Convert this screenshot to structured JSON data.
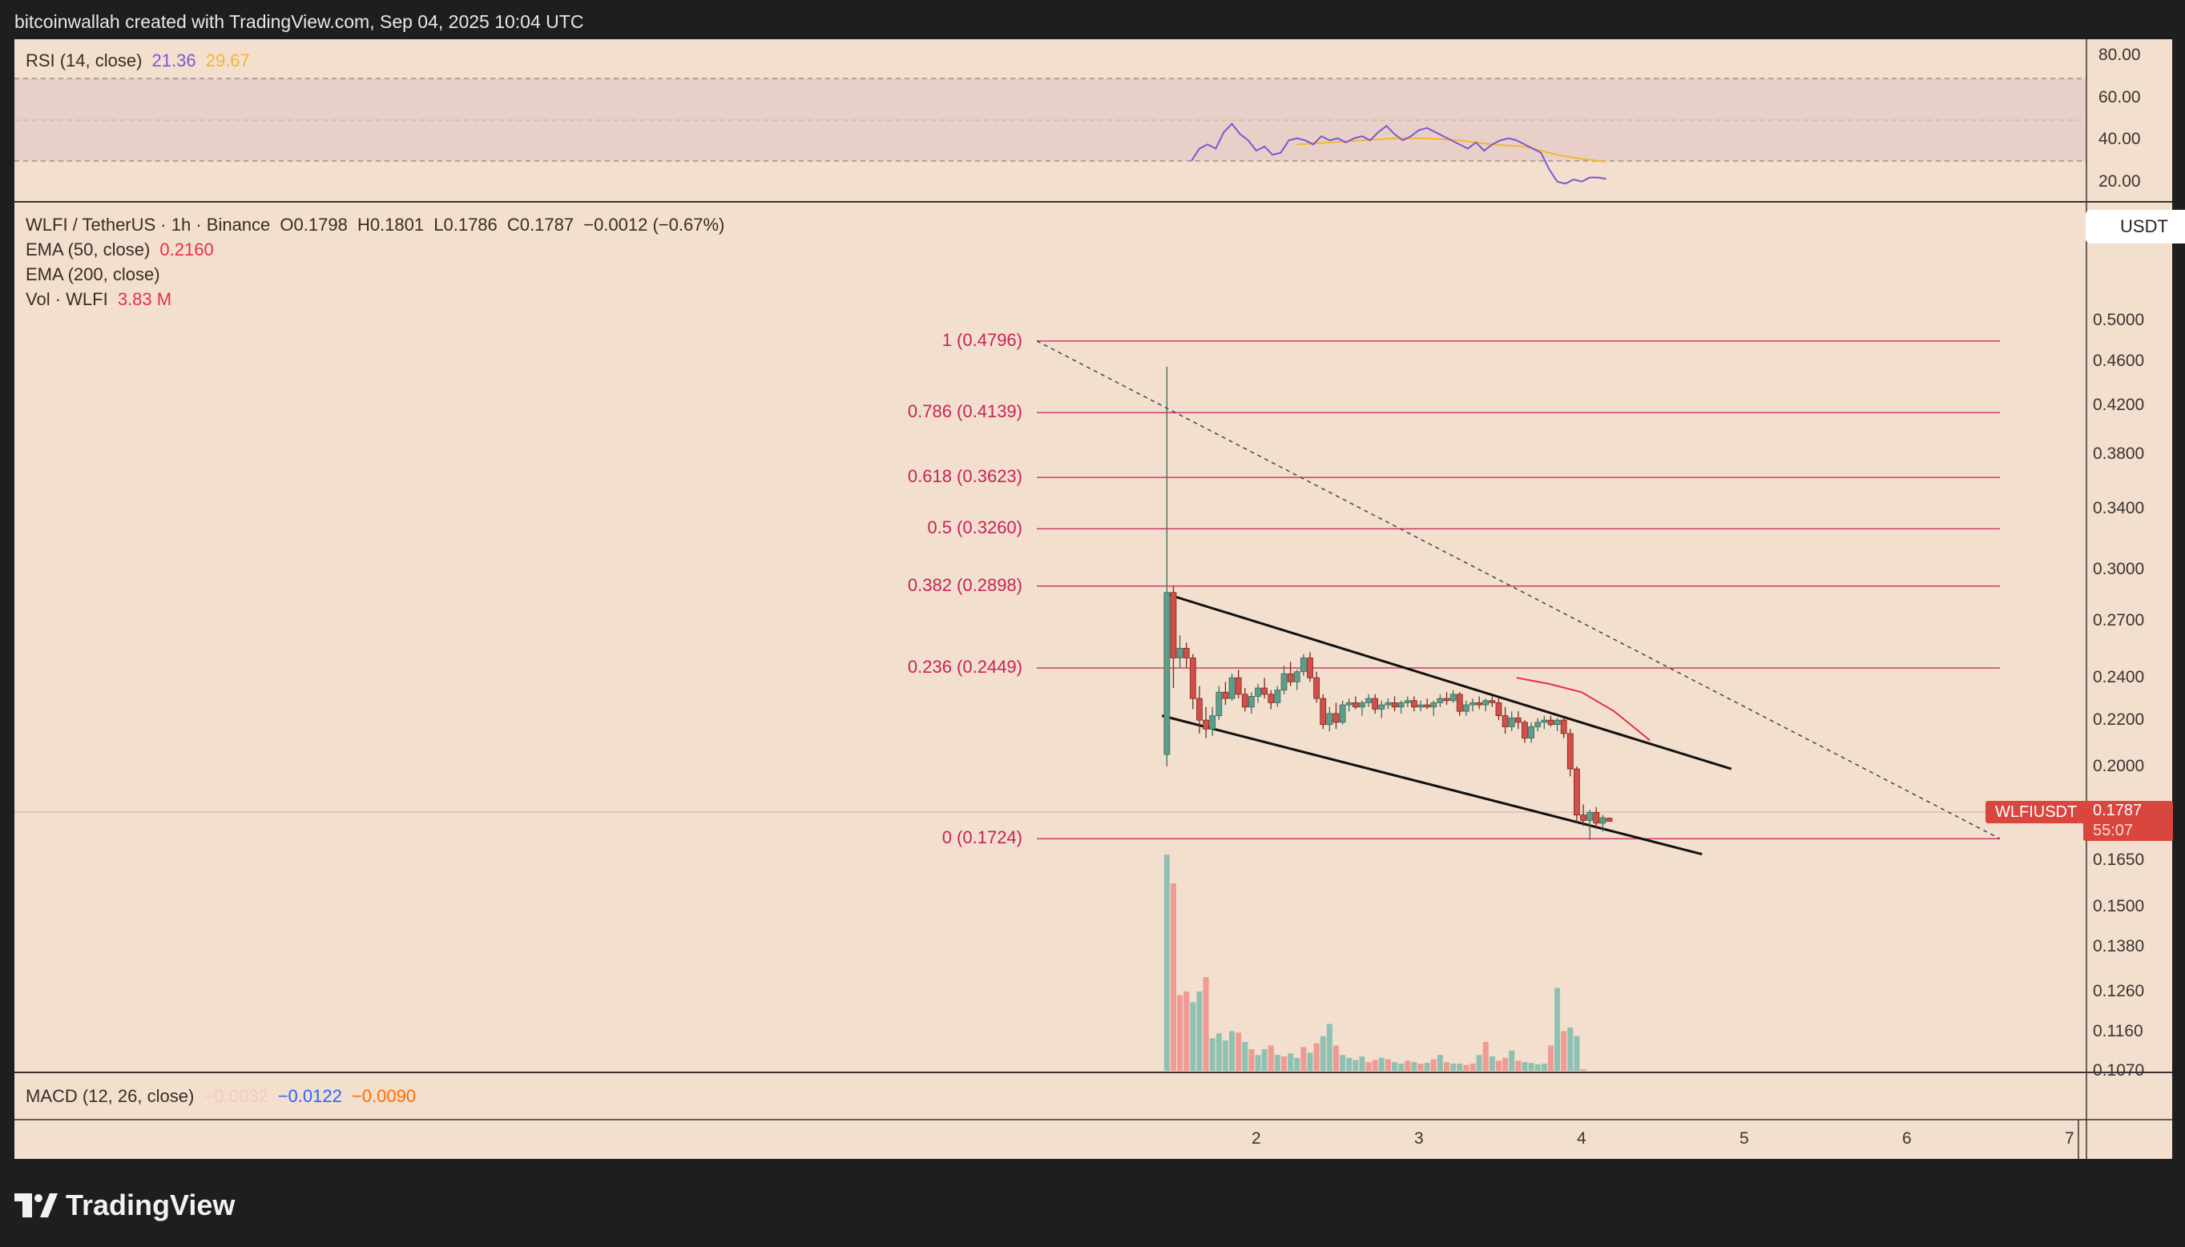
{
  "header": {
    "text": "bitcoinwallah created with TradingView.com, Sep 04, 2025 10:04 UTC"
  },
  "logo": {
    "text": "TradingView"
  },
  "colors": {
    "background": "#f2dfcd",
    "up": "#5c9e8a",
    "down": "#d24e48",
    "vol_up": "#8fc1b2",
    "vol_down": "#ef9a93",
    "fib": "#d3396c",
    "rsi": "#7b57d6",
    "rsi_ma": "#f2b731",
    "ema50": "#e5304a",
    "macd_line": "#2962ff",
    "macd_signal": "#ff6d00"
  },
  "rsi_panel": {
    "name": "RSI",
    "params": "(14, close)",
    "value": "21.36",
    "ma_value": "29.67",
    "axis_ticks": [
      "80.00",
      "60.00",
      "40.00",
      "20.00"
    ]
  },
  "main_panel": {
    "symbol": "WLFI / TetherUS · 1h · Binance",
    "ohlc": {
      "o": "O0.1798",
      "h": "H0.1801",
      "l": "L0.1786",
      "c": "C0.1787",
      "chg": "−0.0012 (−0.67%)"
    },
    "ema50": {
      "label": "EMA (50, close)",
      "value": "0.2160"
    },
    "ema200": {
      "label": "EMA (200, close)"
    },
    "volume": {
      "label": "Vol · WLFI",
      "value": "3.83 M"
    },
    "currency": "USDT",
    "ticker": "WLFIUSDT",
    "last_price": "0.1787",
    "countdown": "55:07",
    "price_ticks": [
      "0.5000",
      "0.4600",
      "0.4200",
      "0.3800",
      "0.3400",
      "0.3000",
      "0.2700",
      "0.2400",
      "0.2200",
      "0.2000",
      "0.1650",
      "0.1500",
      "0.1380",
      "0.1260",
      "0.1160",
      "0.1070"
    ]
  },
  "macd_panel": {
    "label": "MACD (12, 26, close)",
    "v1": "−0.0032",
    "v2": "−0.0122",
    "v3": "−0.0090"
  },
  "time_axis": [
    "2",
    "3",
    "4",
    "5",
    "6",
    "7"
  ],
  "chart_data": {
    "type": "candlestick",
    "symbol": "WLFIUSDT",
    "interval": "1h",
    "ohlc_last": {
      "open": 0.1798,
      "high": 0.1801,
      "low": 0.1786,
      "close": 0.1787
    },
    "fib_levels": [
      {
        "label": "1 (0.4796)",
        "ratio": 1,
        "price": 0.4796
      },
      {
        "label": "0.786 (0.4139)",
        "ratio": 0.786,
        "price": 0.4139
      },
      {
        "label": "0.618 (0.3623)",
        "ratio": 0.618,
        "price": 0.3623
      },
      {
        "label": "0.5 (0.3260)",
        "ratio": 0.5,
        "price": 0.326
      },
      {
        "label": "0.382 (0.2898)",
        "ratio": 0.382,
        "price": 0.2898
      },
      {
        "label": "0.236 (0.2449)",
        "ratio": 0.236,
        "price": 0.2449
      },
      {
        "label": "0 (0.1724)",
        "ratio": 0,
        "price": 0.1724
      }
    ],
    "channel": {
      "upper": [
        [
          1.45,
          0.285
        ],
        [
          4.92,
          0.199
        ]
      ],
      "lower": [
        [
          1.42,
          0.222
        ],
        [
          4.74,
          0.167
        ]
      ]
    },
    "ema50_line": [
      [
        3.6,
        0.24
      ],
      [
        3.8,
        0.237
      ],
      [
        4.0,
        0.233
      ],
      [
        4.2,
        0.224
      ],
      [
        4.42,
        0.211
      ]
    ],
    "candles": [
      [
        1.45,
        0.205,
        0.455,
        0.2,
        0.286
      ],
      [
        1.49,
        0.286,
        0.29,
        0.235,
        0.25
      ],
      [
        1.53,
        0.25,
        0.262,
        0.245,
        0.255
      ],
      [
        1.57,
        0.255,
        0.258,
        0.245,
        0.25
      ],
      [
        1.61,
        0.25,
        0.252,
        0.225,
        0.23
      ],
      [
        1.65,
        0.23,
        0.236,
        0.214,
        0.22
      ],
      [
        1.69,
        0.22,
        0.226,
        0.212,
        0.216
      ],
      [
        1.73,
        0.216,
        0.226,
        0.213,
        0.222
      ],
      [
        1.77,
        0.222,
        0.236,
        0.22,
        0.233
      ],
      [
        1.81,
        0.233,
        0.238,
        0.227,
        0.23
      ],
      [
        1.85,
        0.23,
        0.242,
        0.229,
        0.24
      ],
      [
        1.89,
        0.24,
        0.244,
        0.23,
        0.232
      ],
      [
        1.93,
        0.232,
        0.235,
        0.224,
        0.226
      ],
      [
        1.97,
        0.226,
        0.233,
        0.223,
        0.231
      ],
      [
        2.01,
        0.231,
        0.237,
        0.228,
        0.235
      ],
      [
        2.05,
        0.235,
        0.24,
        0.23,
        0.232
      ],
      [
        2.09,
        0.232,
        0.234,
        0.225,
        0.228
      ],
      [
        2.13,
        0.228,
        0.236,
        0.226,
        0.234
      ],
      [
        2.17,
        0.234,
        0.246,
        0.232,
        0.242
      ],
      [
        2.21,
        0.242,
        0.248,
        0.236,
        0.238
      ],
      [
        2.25,
        0.238,
        0.244,
        0.234,
        0.243
      ],
      [
        2.29,
        0.243,
        0.252,
        0.241,
        0.25
      ],
      [
        2.33,
        0.25,
        0.253,
        0.238,
        0.24
      ],
      [
        2.37,
        0.24,
        0.243,
        0.228,
        0.23
      ],
      [
        2.41,
        0.23,
        0.232,
        0.216,
        0.218
      ],
      [
        2.45,
        0.218,
        0.226,
        0.215,
        0.223
      ],
      [
        2.49,
        0.223,
        0.228,
        0.216,
        0.219
      ],
      [
        2.53,
        0.219,
        0.229,
        0.218,
        0.227
      ],
      [
        2.57,
        0.227,
        0.23,
        0.224,
        0.228
      ],
      [
        2.61,
        0.228,
        0.231,
        0.225,
        0.226
      ],
      [
        2.65,
        0.226,
        0.229,
        0.222,
        0.228
      ],
      [
        2.69,
        0.228,
        0.232,
        0.226,
        0.23
      ],
      [
        2.73,
        0.23,
        0.232,
        0.223,
        0.225
      ],
      [
        2.77,
        0.225,
        0.229,
        0.221,
        0.227
      ],
      [
        2.81,
        0.227,
        0.23,
        0.225,
        0.228
      ],
      [
        2.85,
        0.228,
        0.231,
        0.224,
        0.226
      ],
      [
        2.89,
        0.226,
        0.229,
        0.223,
        0.228
      ],
      [
        2.93,
        0.228,
        0.231,
        0.226,
        0.229
      ],
      [
        2.97,
        0.229,
        0.231,
        0.224,
        0.226
      ],
      [
        3.01,
        0.226,
        0.229,
        0.224,
        0.227
      ],
      [
        3.05,
        0.227,
        0.23,
        0.225,
        0.226
      ],
      [
        3.09,
        0.226,
        0.229,
        0.222,
        0.228
      ],
      [
        3.13,
        0.228,
        0.232,
        0.226,
        0.23
      ],
      [
        3.17,
        0.23,
        0.233,
        0.227,
        0.229
      ],
      [
        3.21,
        0.229,
        0.234,
        0.228,
        0.232
      ],
      [
        3.25,
        0.232,
        0.233,
        0.222,
        0.224
      ],
      [
        3.29,
        0.224,
        0.229,
        0.222,
        0.227
      ],
      [
        3.33,
        0.227,
        0.23,
        0.224,
        0.228
      ],
      [
        3.37,
        0.228,
        0.231,
        0.225,
        0.227
      ],
      [
        3.41,
        0.227,
        0.23,
        0.224,
        0.229
      ],
      [
        3.45,
        0.229,
        0.231,
        0.226,
        0.228
      ],
      [
        3.49,
        0.228,
        0.23,
        0.22,
        0.222
      ],
      [
        3.53,
        0.222,
        0.226,
        0.214,
        0.217
      ],
      [
        3.57,
        0.217,
        0.224,
        0.215,
        0.221
      ],
      [
        3.61,
        0.221,
        0.224,
        0.216,
        0.219
      ],
      [
        3.65,
        0.219,
        0.22,
        0.21,
        0.212
      ],
      [
        3.69,
        0.212,
        0.219,
        0.21,
        0.217
      ],
      [
        3.73,
        0.217,
        0.221,
        0.215,
        0.219
      ],
      [
        3.77,
        0.219,
        0.222,
        0.216,
        0.22
      ],
      [
        3.81,
        0.22,
        0.222,
        0.217,
        0.218
      ],
      [
        3.85,
        0.218,
        0.221,
        0.215,
        0.22
      ],
      [
        3.89,
        0.22,
        0.221,
        0.212,
        0.214
      ],
      [
        3.93,
        0.214,
        0.216,
        0.196,
        0.199
      ],
      [
        3.97,
        0.199,
        0.2,
        0.178,
        0.181
      ],
      [
        4.01,
        0.181,
        0.185,
        0.177,
        0.179
      ],
      [
        4.05,
        0.179,
        0.183,
        0.172,
        0.182
      ],
      [
        4.09,
        0.182,
        0.184,
        0.176,
        0.178
      ],
      [
        4.13,
        0.178,
        0.181,
        0.175,
        0.18
      ],
      [
        4.17,
        0.1798,
        0.1801,
        0.1786,
        0.1787
      ]
    ],
    "volume": [
      [
        1.45,
        3
      ],
      [
        1.49,
        2.6
      ],
      [
        1.53,
        1.05
      ],
      [
        1.57,
        1.1
      ],
      [
        1.61,
        0.95
      ],
      [
        1.65,
        1.1
      ],
      [
        1.69,
        1.3
      ],
      [
        1.73,
        0.45
      ],
      [
        1.77,
        0.52
      ],
      [
        1.81,
        0.42
      ],
      [
        1.85,
        0.55
      ],
      [
        1.89,
        0.53
      ],
      [
        1.93,
        0.4
      ],
      [
        1.97,
        0.3
      ],
      [
        2.01,
        0.22
      ],
      [
        2.05,
        0.3
      ],
      [
        2.09,
        0.35
      ],
      [
        2.13,
        0.22
      ],
      [
        2.17,
        0.2
      ],
      [
        2.21,
        0.24
      ],
      [
        2.25,
        0.18
      ],
      [
        2.29,
        0.33
      ],
      [
        2.33,
        0.25
      ],
      [
        2.37,
        0.38
      ],
      [
        2.41,
        0.48
      ],
      [
        2.45,
        0.65
      ],
      [
        2.49,
        0.35
      ],
      [
        2.53,
        0.22
      ],
      [
        2.57,
        0.18
      ],
      [
        2.61,
        0.15
      ],
      [
        2.65,
        0.2
      ],
      [
        2.69,
        0.12
      ],
      [
        2.73,
        0.15
      ],
      [
        2.77,
        0.18
      ],
      [
        2.81,
        0.16
      ],
      [
        2.85,
        0.12
      ],
      [
        2.89,
        0.1
      ],
      [
        2.93,
        0.14
      ],
      [
        2.97,
        0.12
      ],
      [
        3.01,
        0.1
      ],
      [
        3.05,
        0.11
      ],
      [
        3.09,
        0.16
      ],
      [
        3.13,
        0.22
      ],
      [
        3.17,
        0.12
      ],
      [
        3.21,
        0.1
      ],
      [
        3.25,
        0.1
      ],
      [
        3.29,
        0.08
      ],
      [
        3.33,
        0.1
      ],
      [
        3.37,
        0.22
      ],
      [
        3.41,
        0.4
      ],
      [
        3.45,
        0.2
      ],
      [
        3.49,
        0.14
      ],
      [
        3.53,
        0.18
      ],
      [
        3.57,
        0.28
      ],
      [
        3.61,
        0.14
      ],
      [
        3.65,
        0.12
      ],
      [
        3.69,
        0.11
      ],
      [
        3.73,
        0.09
      ],
      [
        3.77,
        0.1
      ],
      [
        3.81,
        0.35
      ],
      [
        3.85,
        1.15
      ],
      [
        3.89,
        0.55
      ],
      [
        3.93,
        0.6
      ],
      [
        3.97,
        0.48
      ],
      [
        4.01,
        0.02
      ]
    ],
    "volume_up": [
      0,
      4,
      5,
      7,
      8,
      9,
      10,
      12,
      14,
      15,
      17,
      19,
      20,
      22,
      24,
      25,
      27,
      28,
      29,
      30,
      33,
      35,
      36,
      38,
      40,
      42,
      44,
      45,
      48,
      50,
      53,
      55,
      56,
      57,
      58,
      60,
      62,
      63
    ],
    "rsi": [
      [
        1.05,
        30
      ],
      [
        1.1,
        36
      ],
      [
        1.15,
        38
      ],
      [
        1.2,
        36
      ],
      [
        1.25,
        44
      ],
      [
        1.3,
        48
      ],
      [
        1.35,
        43
      ],
      [
        1.4,
        40
      ],
      [
        1.45,
        35
      ],
      [
        1.5,
        37
      ],
      [
        1.55,
        33
      ],
      [
        1.6,
        34
      ],
      [
        1.65,
        40
      ],
      [
        1.7,
        41
      ],
      [
        1.75,
        40
      ],
      [
        1.8,
        38
      ],
      [
        1.85,
        42
      ],
      [
        1.9,
        40
      ],
      [
        1.95,
        41
      ],
      [
        2.0,
        39
      ],
      [
        2.05,
        41
      ],
      [
        2.1,
        42
      ],
      [
        2.15,
        40
      ],
      [
        2.2,
        44
      ],
      [
        2.25,
        47
      ],
      [
        2.3,
        43
      ],
      [
        2.35,
        40
      ],
      [
        2.4,
        42
      ],
      [
        2.45,
        45
      ],
      [
        2.5,
        46
      ],
      [
        2.55,
        44
      ],
      [
        2.6,
        42
      ],
      [
        2.65,
        40
      ],
      [
        2.7,
        38
      ],
      [
        2.75,
        36
      ],
      [
        2.8,
        39
      ],
      [
        2.85,
        35
      ],
      [
        2.9,
        38
      ],
      [
        2.95,
        40
      ],
      [
        3.0,
        41
      ],
      [
        3.05,
        40
      ],
      [
        3.1,
        38
      ],
      [
        3.15,
        36
      ],
      [
        3.2,
        34
      ],
      [
        3.25,
        26
      ],
      [
        3.3,
        20
      ],
      [
        3.35,
        19
      ],
      [
        3.4,
        21
      ],
      [
        3.45,
        20
      ],
      [
        3.5,
        22
      ],
      [
        3.55,
        22
      ],
      [
        3.6,
        21.36
      ]
    ],
    "rsi_ma": [
      [
        1.7,
        38
      ],
      [
        1.9,
        39
      ],
      [
        2.1,
        40
      ],
      [
        2.3,
        41
      ],
      [
        2.5,
        41
      ],
      [
        2.7,
        40
      ],
      [
        2.9,
        38
      ],
      [
        3.1,
        37
      ],
      [
        3.3,
        33
      ],
      [
        3.45,
        31
      ],
      [
        3.6,
        29.67
      ]
    ],
    "ylim_price": [
      0.107,
      0.53
    ],
    "rsi_levels": [
      70,
      50,
      30
    ]
  }
}
